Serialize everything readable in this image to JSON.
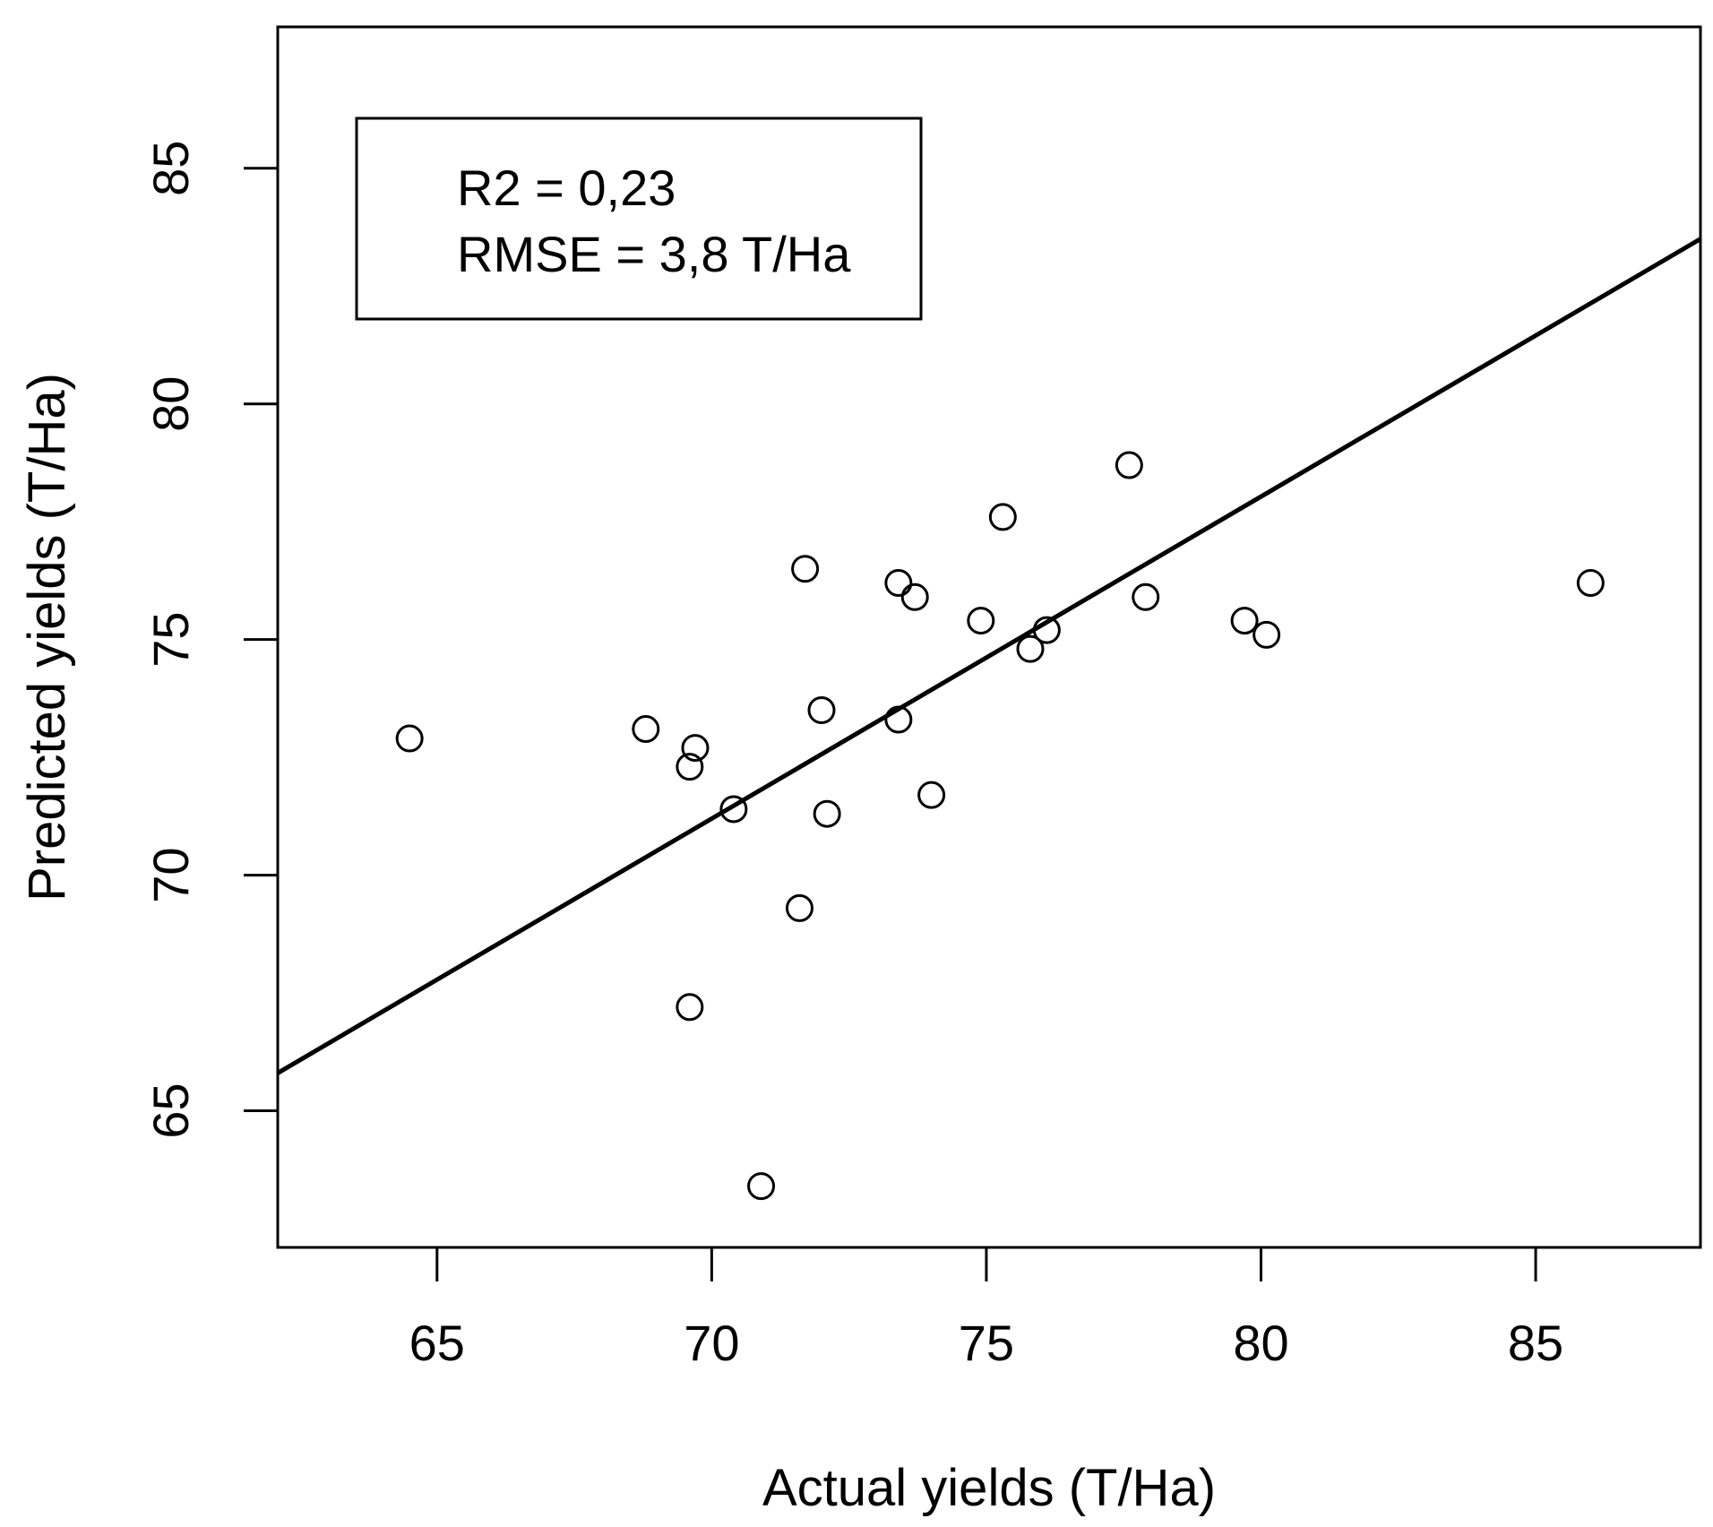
{
  "chart_data": {
    "type": "scatter",
    "title": "",
    "xlabel": "Actual yields (T/Ha)",
    "ylabel": "Predicted yields (T/Ha)",
    "xlim": [
      62.1,
      88.0
    ],
    "ylim": [
      62.1,
      88.0
    ],
    "xticks": [
      65,
      70,
      75,
      80,
      85
    ],
    "yticks": [
      65,
      70,
      75,
      80,
      85
    ],
    "grid": false,
    "points": [
      {
        "x": 64.5,
        "y": 72.9
      },
      {
        "x": 68.8,
        "y": 73.1
      },
      {
        "x": 69.6,
        "y": 72.3
      },
      {
        "x": 69.7,
        "y": 72.7
      },
      {
        "x": 69.6,
        "y": 67.2
      },
      {
        "x": 70.4,
        "y": 71.4
      },
      {
        "x": 70.9,
        "y": 63.4
      },
      {
        "x": 71.6,
        "y": 69.3
      },
      {
        "x": 71.7,
        "y": 76.5
      },
      {
        "x": 72.0,
        "y": 73.5
      },
      {
        "x": 72.1,
        "y": 71.3
      },
      {
        "x": 73.4,
        "y": 76.2
      },
      {
        "x": 73.4,
        "y": 73.3
      },
      {
        "x": 73.7,
        "y": 75.9
      },
      {
        "x": 74.0,
        "y": 71.7
      },
      {
        "x": 74.9,
        "y": 75.4
      },
      {
        "x": 75.3,
        "y": 77.6
      },
      {
        "x": 75.8,
        "y": 74.8
      },
      {
        "x": 76.1,
        "y": 75.2
      },
      {
        "x": 77.6,
        "y": 78.7
      },
      {
        "x": 77.9,
        "y": 75.9
      },
      {
        "x": 79.7,
        "y": 75.4
      },
      {
        "x": 80.1,
        "y": 75.1
      },
      {
        "x": 86.0,
        "y": 76.2
      }
    ],
    "fit_line": {
      "x1": 62.1,
      "y1": 65.8,
      "x2": 88.0,
      "y2": 83.5
    },
    "annotation": {
      "r2": "R2 = 0,23",
      "rmse": "RMSE = 3,8 T/Ha",
      "position": "top-left"
    }
  }
}
